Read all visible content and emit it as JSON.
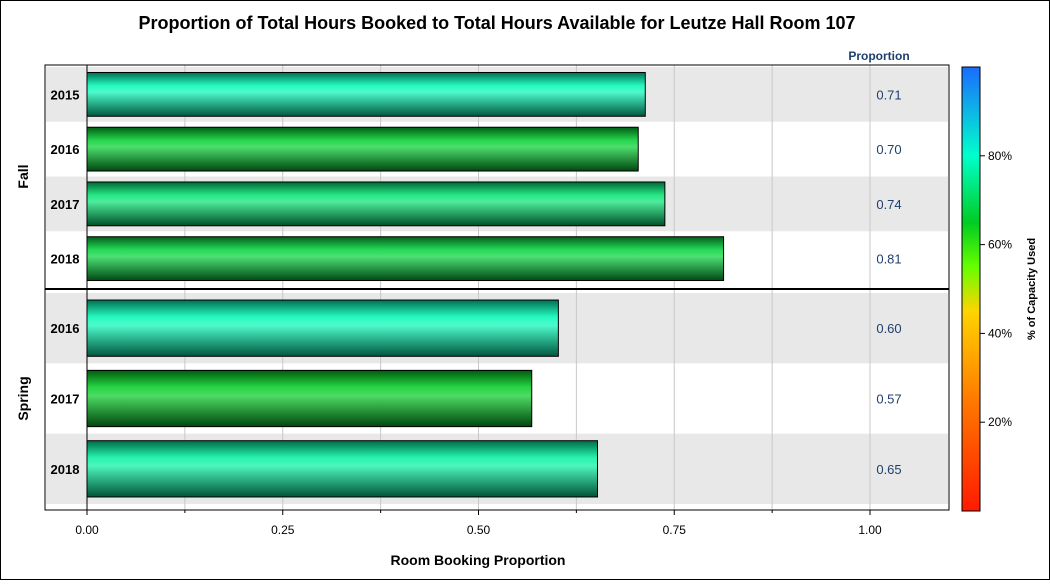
{
  "chart_data": {
    "type": "bar",
    "orientation": "horizontal",
    "title": "Proportion of Total Hours Booked to Total Hours Available for Leutze Hall Room 107",
    "xlabel": "Room Booking Proportion",
    "xlim": [
      0,
      1.1
    ],
    "xticks": [
      "0.00",
      "0.25",
      "0.50",
      "0.75",
      "1.00"
    ],
    "xtick_values": [
      0,
      0.25,
      0.5,
      0.75,
      1.0
    ],
    "value_column_header": "Proportion",
    "grid": true,
    "groups": [
      {
        "name": "Fall",
        "rows": [
          {
            "label": "2015",
            "value": 0.713,
            "value_label": "0.71",
            "color_value": 78
          },
          {
            "label": "2016",
            "value": 0.704,
            "value_label": "0.70",
            "color_value": 66
          },
          {
            "label": "2017",
            "value": 0.738,
            "value_label": "0.74",
            "color_value": 72
          },
          {
            "label": "2018",
            "value": 0.813,
            "value_label": "0.81",
            "color_value": 67
          }
        ]
      },
      {
        "name": "Spring",
        "rows": [
          {
            "label": "2016",
            "value": 0.602,
            "value_label": "0.60",
            "color_value": 78
          },
          {
            "label": "2017",
            "value": 0.568,
            "value_label": "0.57",
            "color_value": 65
          },
          {
            "label": "2018",
            "value": 0.652,
            "value_label": "0.65",
            "color_value": 76
          }
        ]
      }
    ],
    "colorbar": {
      "label": "% of Capacity Used",
      "range": [
        0,
        100
      ],
      "ticks": [
        "20%",
        "40%",
        "60%",
        "80%"
      ],
      "tick_values": [
        20,
        40,
        60,
        80
      ],
      "stops": [
        {
          "at": 0,
          "color": "#ff1a00"
        },
        {
          "at": 25,
          "color": "#ff7a00"
        },
        {
          "at": 45,
          "color": "#ffd400"
        },
        {
          "at": 55,
          "color": "#66ff00"
        },
        {
          "at": 65,
          "color": "#00cc22"
        },
        {
          "at": 80,
          "color": "#00ffcc"
        },
        {
          "at": 100,
          "color": "#1a6cff"
        }
      ]
    }
  }
}
